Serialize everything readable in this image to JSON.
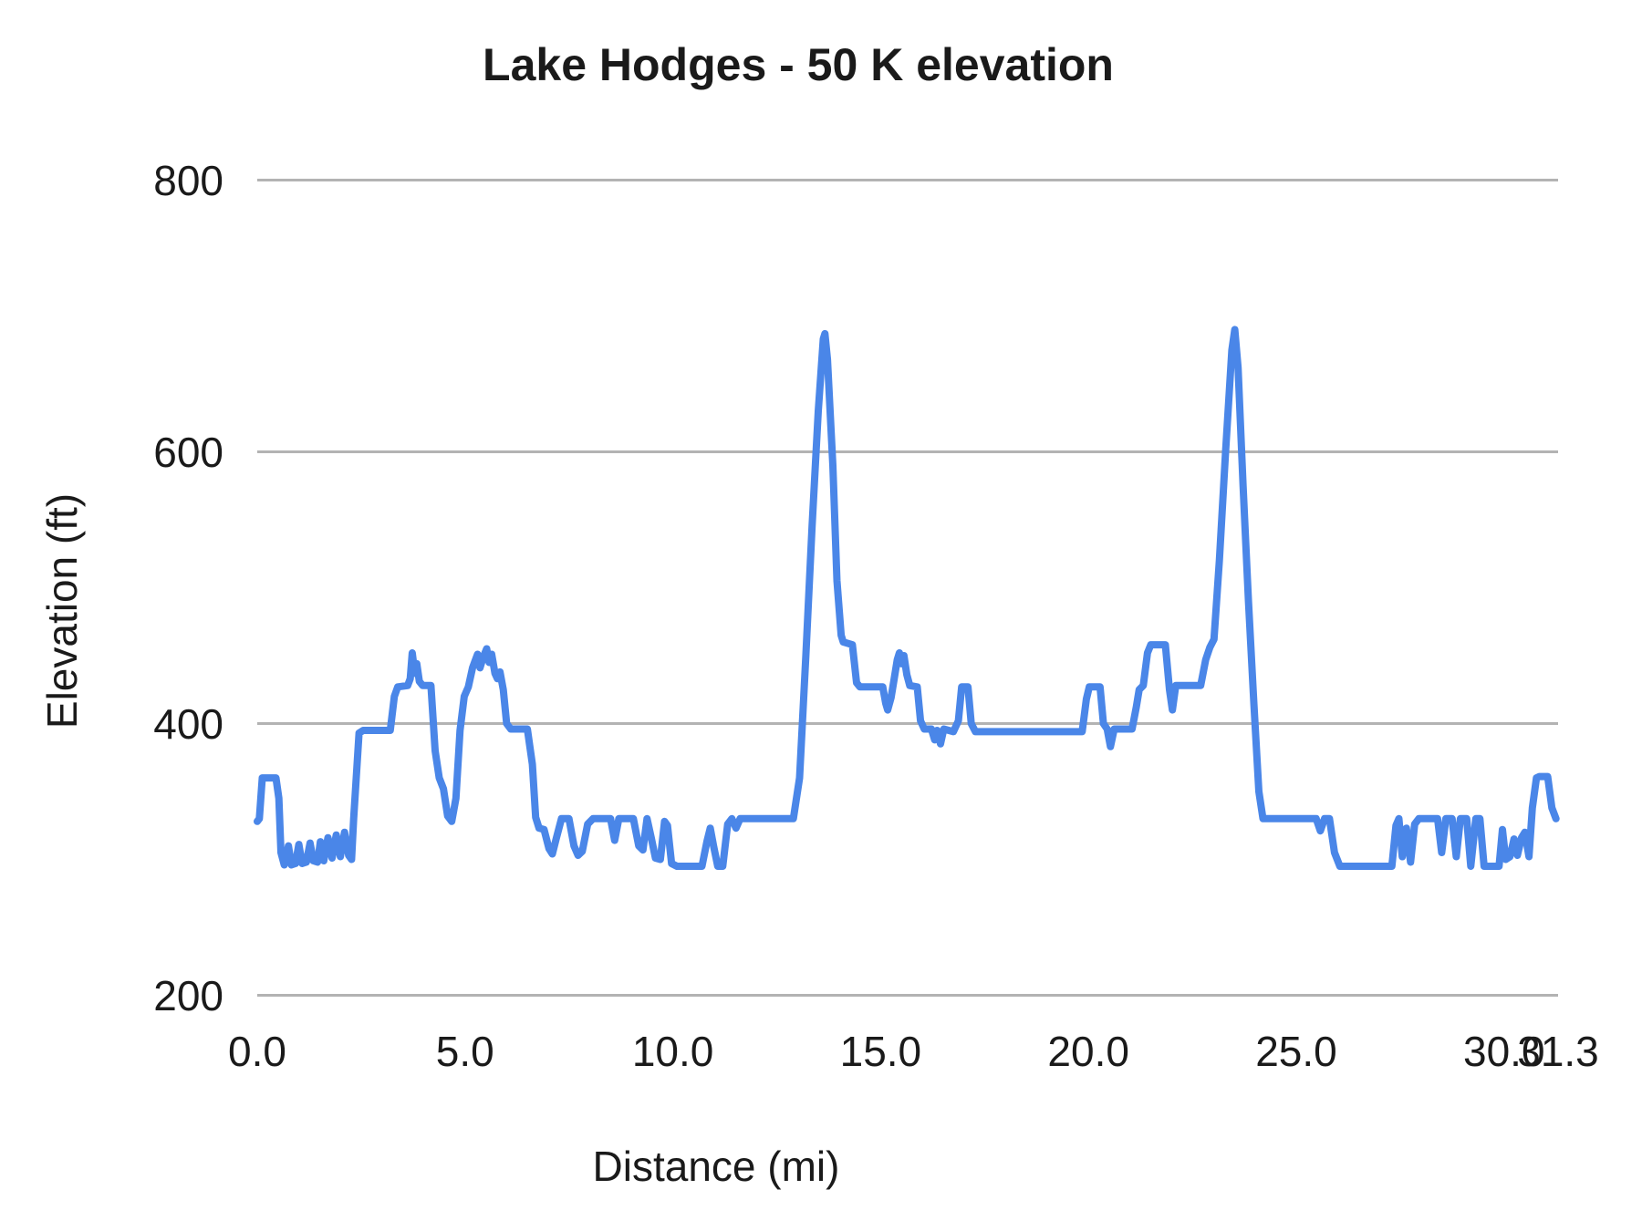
{
  "colors": {
    "line": "#4a86e8",
    "gridline": "#b3b3b3",
    "text": "#1a1a1a",
    "background": "#ffffff"
  },
  "chart_data": {
    "type": "line",
    "title": "Lake Hodges - 50 K elevation",
    "xlabel": "Distance (mi)",
    "ylabel": "Elevation (ft)",
    "xlim": [
      0,
      31.3
    ],
    "ylim": [
      200,
      800
    ],
    "grid": "horizontal",
    "legend": "none",
    "x_ticks": [
      {
        "label": "0.0",
        "value": 0
      },
      {
        "label": "5.0",
        "value": 5
      },
      {
        "label": "10.0",
        "value": 10
      },
      {
        "label": "15.0",
        "value": 15
      },
      {
        "label": "20.0",
        "value": 20
      },
      {
        "label": "25.0",
        "value": 25
      },
      {
        "label": "30.0",
        "value": 30
      },
      {
        "label": "31.3",
        "value": 31.3
      }
    ],
    "y_ticks": [
      {
        "label": "200",
        "value": 200
      },
      {
        "label": "400",
        "value": 400
      },
      {
        "label": "600",
        "value": 600
      },
      {
        "label": "800",
        "value": 800
      }
    ],
    "series": [
      {
        "name": "elevation",
        "color": "#4a86e8",
        "points": [
          [
            0.0,
            328
          ],
          [
            0.05,
            330
          ],
          [
            0.12,
            360
          ],
          [
            0.45,
            360
          ],
          [
            0.52,
            345
          ],
          [
            0.57,
            305
          ],
          [
            0.65,
            296
          ],
          [
            0.75,
            310
          ],
          [
            0.82,
            296
          ],
          [
            0.92,
            297
          ],
          [
            1.0,
            311
          ],
          [
            1.08,
            297
          ],
          [
            1.18,
            298
          ],
          [
            1.27,
            312
          ],
          [
            1.35,
            299
          ],
          [
            1.45,
            298
          ],
          [
            1.52,
            313
          ],
          [
            1.6,
            299
          ],
          [
            1.7,
            316
          ],
          [
            1.8,
            301
          ],
          [
            1.9,
            318
          ],
          [
            2.0,
            302
          ],
          [
            2.1,
            320
          ],
          [
            2.2,
            303
          ],
          [
            2.27,
            300
          ],
          [
            2.32,
            330
          ],
          [
            2.45,
            393
          ],
          [
            2.55,
            395
          ],
          [
            3.2,
            395
          ],
          [
            3.3,
            420
          ],
          [
            3.38,
            427
          ],
          [
            3.62,
            428
          ],
          [
            3.68,
            433
          ],
          [
            3.73,
            452
          ],
          [
            3.79,
            437
          ],
          [
            3.84,
            444
          ],
          [
            3.9,
            431
          ],
          [
            3.98,
            428
          ],
          [
            4.18,
            428
          ],
          [
            4.28,
            380
          ],
          [
            4.38,
            360
          ],
          [
            4.48,
            352
          ],
          [
            4.58,
            332
          ],
          [
            4.68,
            328
          ],
          [
            4.78,
            345
          ],
          [
            4.88,
            395
          ],
          [
            4.98,
            420
          ],
          [
            5.08,
            427
          ],
          [
            5.18,
            441
          ],
          [
            5.24,
            446
          ],
          [
            5.3,
            451
          ],
          [
            5.36,
            441
          ],
          [
            5.44,
            449
          ],
          [
            5.52,
            455
          ],
          [
            5.58,
            445
          ],
          [
            5.64,
            451
          ],
          [
            5.72,
            437
          ],
          [
            5.78,
            433
          ],
          [
            5.84,
            438
          ],
          [
            5.92,
            425
          ],
          [
            6.0,
            400
          ],
          [
            6.1,
            396
          ],
          [
            6.5,
            396
          ],
          [
            6.62,
            370
          ],
          [
            6.7,
            331
          ],
          [
            6.78,
            323
          ],
          [
            6.9,
            322
          ],
          [
            7.02,
            308
          ],
          [
            7.1,
            304
          ],
          [
            7.2,
            316
          ],
          [
            7.32,
            330
          ],
          [
            7.5,
            330
          ],
          [
            7.62,
            310
          ],
          [
            7.72,
            303
          ],
          [
            7.82,
            306
          ],
          [
            7.95,
            326
          ],
          [
            8.08,
            330
          ],
          [
            8.5,
            330
          ],
          [
            8.6,
            314
          ],
          [
            8.7,
            330
          ],
          [
            9.05,
            330
          ],
          [
            9.18,
            310
          ],
          [
            9.28,
            307
          ],
          [
            9.38,
            330
          ],
          [
            9.48,
            316
          ],
          [
            9.58,
            301
          ],
          [
            9.7,
            300
          ],
          [
            9.8,
            328
          ],
          [
            9.87,
            325
          ],
          [
            9.97,
            297
          ],
          [
            10.1,
            295
          ],
          [
            10.7,
            295
          ],
          [
            10.82,
            313
          ],
          [
            10.9,
            323
          ],
          [
            10.98,
            310
          ],
          [
            11.08,
            295
          ],
          [
            11.2,
            295
          ],
          [
            11.32,
            326
          ],
          [
            11.42,
            330
          ],
          [
            11.52,
            323
          ],
          [
            11.62,
            330
          ],
          [
            12.9,
            330
          ],
          [
            13.05,
            360
          ],
          [
            13.2,
            450
          ],
          [
            13.35,
            545
          ],
          [
            13.5,
            630
          ],
          [
            13.62,
            683
          ],
          [
            13.66,
            687
          ],
          [
            13.72,
            668
          ],
          [
            13.85,
            590
          ],
          [
            13.95,
            505
          ],
          [
            14.05,
            465
          ],
          [
            14.1,
            460
          ],
          [
            14.32,
            458
          ],
          [
            14.42,
            430
          ],
          [
            14.5,
            427
          ],
          [
            15.05,
            427
          ],
          [
            15.12,
            415
          ],
          [
            15.17,
            410
          ],
          [
            15.25,
            419
          ],
          [
            15.32,
            432
          ],
          [
            15.4,
            447
          ],
          [
            15.45,
            452
          ],
          [
            15.5,
            444
          ],
          [
            15.56,
            450
          ],
          [
            15.63,
            436
          ],
          [
            15.7,
            428
          ],
          [
            15.88,
            427
          ],
          [
            15.96,
            402
          ],
          [
            16.05,
            396
          ],
          [
            16.22,
            396
          ],
          [
            16.3,
            388
          ],
          [
            16.36,
            395
          ],
          [
            16.44,
            385
          ],
          [
            16.52,
            396
          ],
          [
            16.75,
            394
          ],
          [
            16.87,
            402
          ],
          [
            16.95,
            427
          ],
          [
            17.1,
            427
          ],
          [
            17.18,
            400
          ],
          [
            17.28,
            394
          ],
          [
            19.85,
            394
          ],
          [
            19.95,
            418
          ],
          [
            20.02,
            427
          ],
          [
            20.28,
            427
          ],
          [
            20.36,
            400
          ],
          [
            20.45,
            396
          ],
          [
            20.53,
            383
          ],
          [
            20.62,
            396
          ],
          [
            21.05,
            396
          ],
          [
            21.15,
            412
          ],
          [
            21.22,
            425
          ],
          [
            21.32,
            428
          ],
          [
            21.42,
            452
          ],
          [
            21.5,
            458
          ],
          [
            21.85,
            458
          ],
          [
            21.95,
            425
          ],
          [
            22.02,
            410
          ],
          [
            22.1,
            428
          ],
          [
            22.7,
            428
          ],
          [
            22.82,
            447
          ],
          [
            22.92,
            456
          ],
          [
            23.02,
            462
          ],
          [
            23.15,
            520
          ],
          [
            23.3,
            600
          ],
          [
            23.45,
            675
          ],
          [
            23.52,
            690
          ],
          [
            23.6,
            662
          ],
          [
            23.72,
            575
          ],
          [
            23.85,
            490
          ],
          [
            23.98,
            415
          ],
          [
            24.1,
            350
          ],
          [
            24.2,
            330
          ],
          [
            25.48,
            330
          ],
          [
            25.58,
            321
          ],
          [
            25.68,
            330
          ],
          [
            25.8,
            330
          ],
          [
            25.92,
            305
          ],
          [
            26.05,
            295
          ],
          [
            27.3,
            295
          ],
          [
            27.4,
            325
          ],
          [
            27.47,
            330
          ],
          [
            27.55,
            302
          ],
          [
            27.65,
            323
          ],
          [
            27.75,
            298
          ],
          [
            27.85,
            326
          ],
          [
            27.95,
            330
          ],
          [
            28.4,
            330
          ],
          [
            28.5,
            305
          ],
          [
            28.6,
            330
          ],
          [
            28.75,
            330
          ],
          [
            28.85,
            302
          ],
          [
            28.95,
            330
          ],
          [
            29.1,
            330
          ],
          [
            29.2,
            295
          ],
          [
            29.32,
            330
          ],
          [
            29.42,
            330
          ],
          [
            29.52,
            295
          ],
          [
            29.88,
            295
          ],
          [
            29.96,
            322
          ],
          [
            30.04,
            300
          ],
          [
            30.14,
            302
          ],
          [
            30.24,
            315
          ],
          [
            30.32,
            303
          ],
          [
            30.42,
            316
          ],
          [
            30.5,
            320
          ],
          [
            30.6,
            302
          ],
          [
            30.68,
            338
          ],
          [
            30.78,
            360
          ],
          [
            30.85,
            361
          ],
          [
            31.05,
            361
          ],
          [
            31.15,
            338
          ],
          [
            31.25,
            330
          ]
        ]
      }
    ]
  }
}
